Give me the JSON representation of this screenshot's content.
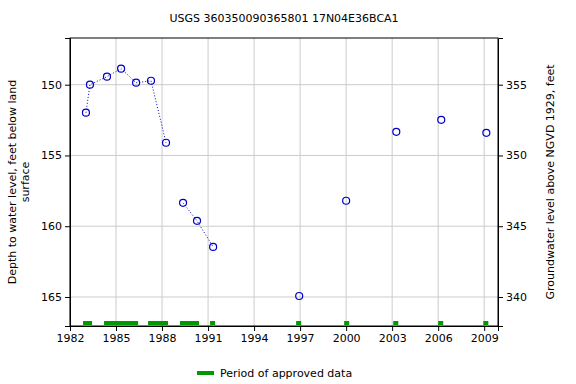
{
  "chart_data": {
    "type": "scatter",
    "title": "USGS 360350090365801 17N04E36BCA1",
    "ylabel": [
      "Depth to water level, feet below land",
      "surface"
    ],
    "y2label": "Groundwater level above NGVD 1929, feet",
    "x": [
      1983.04,
      1983.3,
      1984.41,
      1985.33,
      1986.31,
      1987.28,
      1988.26,
      null,
      1989.37,
      1990.28,
      1991.33,
      null,
      1996.94,
      null,
      2000.0,
      null,
      2003.27,
      null,
      2006.2,
      null,
      2009.14
    ],
    "values": [
      151.98,
      150.0,
      149.43,
      148.87,
      149.86,
      149.72,
      154.1,
      null,
      158.35,
      159.62,
      161.46,
      null,
      164.93,
      null,
      158.2,
      null,
      153.33,
      null,
      152.48,
      null,
      153.4
    ],
    "color": "#0000cc",
    "marker": "open-circle",
    "line_style": "dotted",
    "xlim": [
      1982,
      2009.9
    ],
    "xticks": [
      1982,
      1985,
      1988,
      1991,
      1994,
      1997,
      2000,
      2003,
      2006,
      2009
    ],
    "ylim": [
      146.7,
      167.05
    ],
    "yticks": [
      150,
      155,
      160,
      165
    ],
    "y2lim": [
      358.3,
      337.95
    ],
    "y2ticks": [
      355,
      350,
      345,
      340
    ],
    "grid": true,
    "legend": "bottom",
    "approved_data": {
      "name": "Period of approved data",
      "color": "#009900",
      "periods": [
        [
          1982.85,
          1983.44
        ],
        [
          1984.22,
          1986.44
        ],
        [
          1987.09,
          1988.39
        ],
        [
          1989.17,
          1990.41
        ],
        [
          1991.13,
          1991.46
        ],
        [
          1996.74,
          1997.07
        ],
        [
          1999.87,
          2000.2
        ],
        [
          2003.07,
          2003.4
        ],
        [
          2006.0,
          2006.33
        ],
        [
          2008.94,
          2009.27
        ]
      ]
    }
  }
}
